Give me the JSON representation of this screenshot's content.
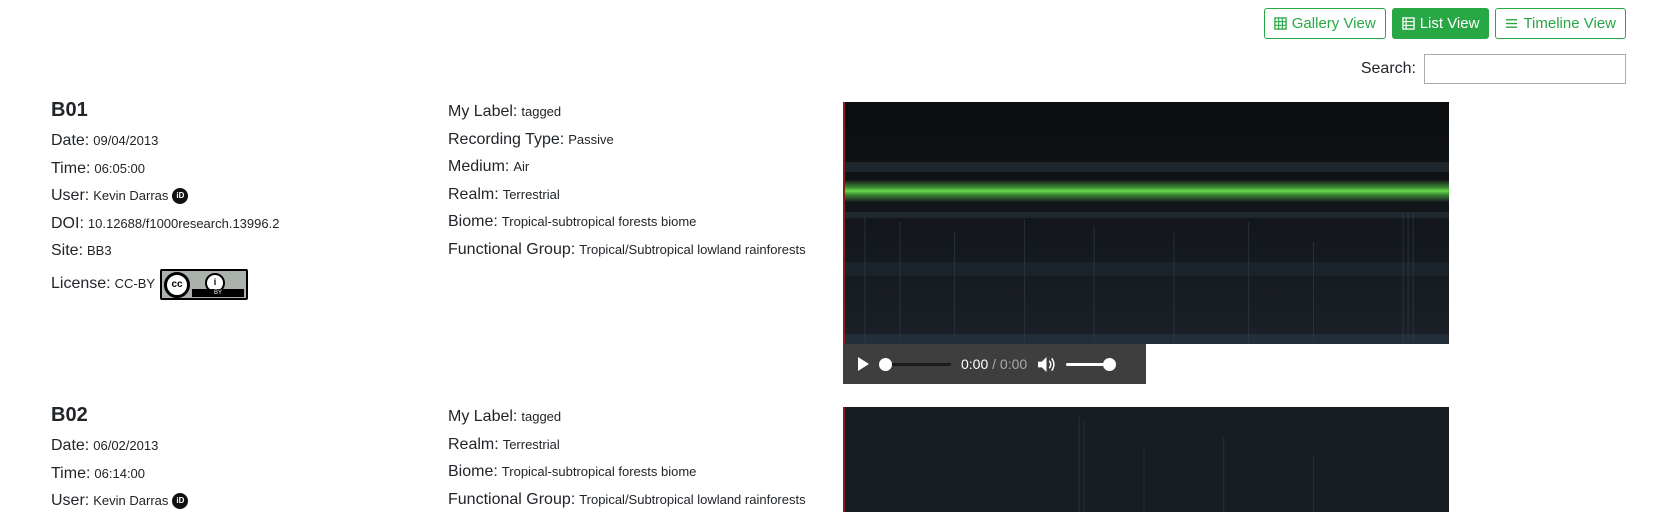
{
  "toolbar": {
    "gallery_label": "Gallery View",
    "list_label": "List View",
    "timeline_label": "Timeline View",
    "active": "list"
  },
  "search": {
    "label": "Search:",
    "value": "",
    "placeholder": ""
  },
  "records": [
    {
      "title": "B01",
      "date_key": "Date:",
      "date": "09/04/2013",
      "time_key": "Time:",
      "time": "06:05:00",
      "user_key": "User:",
      "user": "Kevin Darras",
      "doi_key": "DOI:",
      "doi": "10.12688/f1000research.13996.2",
      "site_key": "Site:",
      "site": "BB3",
      "license_key": "License:",
      "license": "CC-BY",
      "license_badge_text": "BY",
      "tags": [
        {
          "key": "My Label:",
          "value": "tagged"
        },
        {
          "key": "Recording Type:",
          "value": "Passive"
        },
        {
          "key": "Medium:",
          "value": "Air"
        },
        {
          "key": "Realm:",
          "value": "Terrestrial"
        },
        {
          "key": "Biome:",
          "value": "Tropical-subtropical forests biome"
        },
        {
          "key": "Functional Group:",
          "value": "Tropical/Subtropical lowland rainforests"
        }
      ],
      "player": {
        "current": "0:00",
        "separator": "/",
        "duration": "0:00"
      }
    },
    {
      "title": "B02",
      "date_key": "Date:",
      "date": "06/02/2013",
      "time_key": "Time:",
      "time": "06:14:00",
      "user_key": "User:",
      "user": "Kevin Darras",
      "tags": [
        {
          "key": "My Label:",
          "value": "tagged"
        },
        {
          "key": "Realm:",
          "value": "Terrestrial"
        },
        {
          "key": "Biome:",
          "value": "Tropical-subtropical forests biome"
        },
        {
          "key": "Functional Group:",
          "value": "Tropical/Subtropical lowland rainforests"
        }
      ]
    }
  ],
  "icons": {
    "gallery": "grid-icon",
    "list": "list-icon",
    "timeline": "timeline-icon",
    "orcid": "orcid-icon",
    "play": "play-icon",
    "volume": "volume-icon"
  },
  "colors": {
    "accent": "#28a745",
    "spectrogram_band": "#5fd84a",
    "spectrogram_bg": "#15191d",
    "player_bg": "#3e3e3e"
  }
}
